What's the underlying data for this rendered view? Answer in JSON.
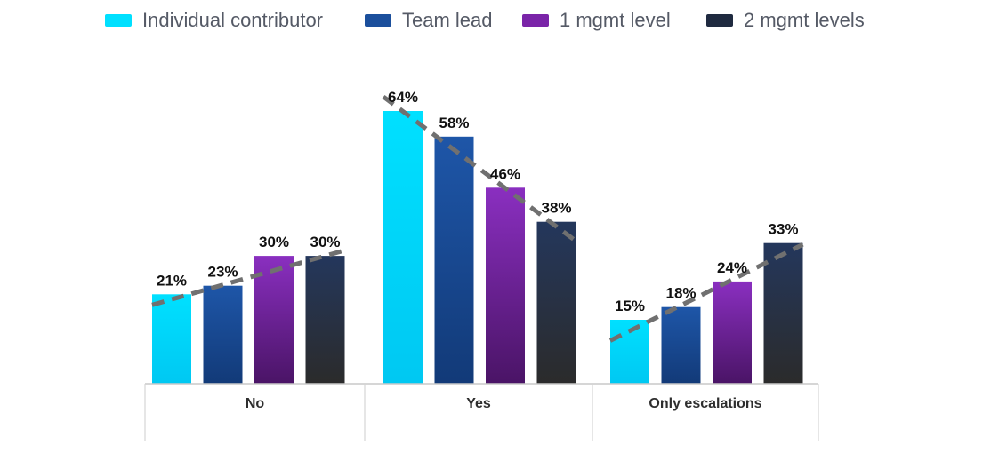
{
  "chart_data": {
    "type": "bar",
    "categories": [
      "No",
      "Yes",
      "Only escalations"
    ],
    "series": [
      {
        "name": "Individual contributor",
        "values": [
          21,
          64,
          15
        ],
        "color_top": "#00e0ff",
        "color_bottom": "#00c8f2"
      },
      {
        "name": "Team lead",
        "values": [
          23,
          58,
          18
        ],
        "color_top": "#1e56a8",
        "color_bottom": "#123a78"
      },
      {
        "name": "1 mgmt level",
        "values": [
          30,
          46,
          24
        ],
        "color_top": "#8a2fc0",
        "color_bottom": "#4a1466"
      },
      {
        "name": "2 mgmt levels",
        "values": [
          30,
          38,
          33
        ],
        "color_top": "#24375c",
        "color_bottom": "#2b2b2b"
      }
    ],
    "data_labels": [
      [
        "21%",
        "23%",
        "30%",
        "30%"
      ],
      [
        "64%",
        "58%",
        "46%",
        "38%"
      ],
      [
        "15%",
        "18%",
        "24%",
        "33%"
      ]
    ],
    "value_suffix": "%",
    "ylim": [
      0,
      64
    ],
    "grid": false,
    "legend_position": "top",
    "trendline": {
      "style": "dashed",
      "color": "#707070"
    },
    "title": "",
    "xlabel": "",
    "ylabel": ""
  }
}
